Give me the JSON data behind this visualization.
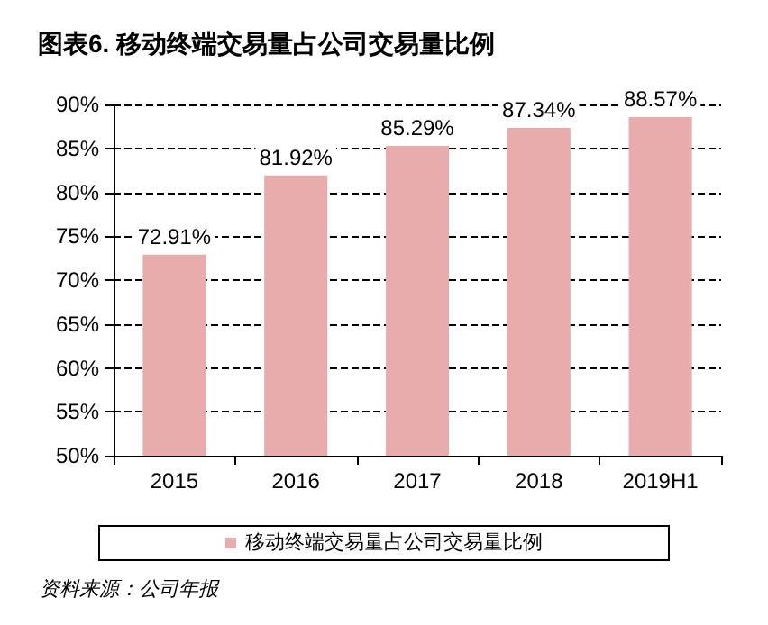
{
  "chart_data": {
    "type": "bar",
    "title": "图表6. 移动终端交易量占公司交易量比例",
    "categories": [
      "2015",
      "2016",
      "2017",
      "2018",
      "2019H1"
    ],
    "series": [
      {
        "name": "移动终端交易量占公司交易量比例",
        "color": "#e8acac",
        "values": [
          72.91,
          81.92,
          85.29,
          87.34,
          88.57
        ],
        "value_labels": [
          "72.91%",
          "81.92%",
          "85.29%",
          "87.34%",
          "88.57%"
        ]
      }
    ],
    "ylim": [
      50,
      90
    ],
    "yticks": [
      {
        "value": 50,
        "label": "50%"
      },
      {
        "value": 55,
        "label": "55%"
      },
      {
        "value": 60,
        "label": "60%"
      },
      {
        "value": 65,
        "label": "65%"
      },
      {
        "value": 70,
        "label": "70%"
      },
      {
        "value": 75,
        "label": "75%"
      },
      {
        "value": 80,
        "label": "80%"
      },
      {
        "value": 85,
        "label": "85%"
      },
      {
        "value": 90,
        "label": "90%"
      }
    ],
    "grid": "y",
    "legend": "bottom",
    "annotations": [
      "资料来源：公司年报"
    ]
  }
}
